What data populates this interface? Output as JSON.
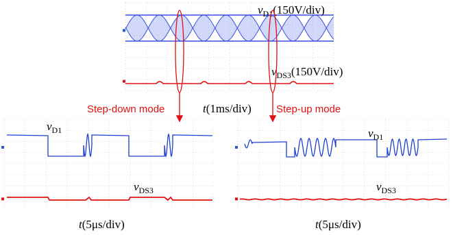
{
  "top": {
    "v_d1": {
      "symbol": "v",
      "subscript": "D1",
      "scale": "(150V/div)"
    },
    "v_ds3": {
      "symbol": "v",
      "subscript": "DS3",
      "scale": "(150V/div)"
    },
    "time": {
      "symbol": "t",
      "scale": "(1ms/div)"
    }
  },
  "modes": {
    "step_down": "Step-down mode",
    "step_up": "Step-up mode"
  },
  "left": {
    "v_d1": {
      "symbol": "v",
      "subscript": "D1"
    },
    "v_ds3": {
      "symbol": "v",
      "subscript": "DS3"
    },
    "time": {
      "symbol": "t",
      "scale": "(5μs/div)"
    }
  },
  "right": {
    "v_d1": {
      "symbol": "v",
      "subscript": "D1"
    },
    "v_ds3": {
      "symbol": "v",
      "subscript": "DS3"
    },
    "time": {
      "symbol": "t",
      "scale": "(5μs/div)"
    }
  }
}
